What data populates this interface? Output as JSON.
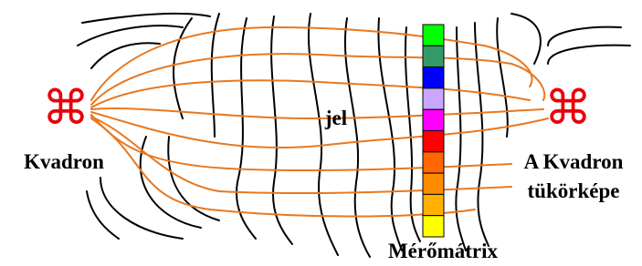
{
  "left_node": {
    "symbol": "⌘",
    "label": "Kvadron"
  },
  "right_node": {
    "symbol": "⌘",
    "label_lines": [
      "A Kvadron",
      "tükörképe"
    ]
  },
  "signal_label": "jel",
  "matrix_label": "Mérőmátrix"
}
